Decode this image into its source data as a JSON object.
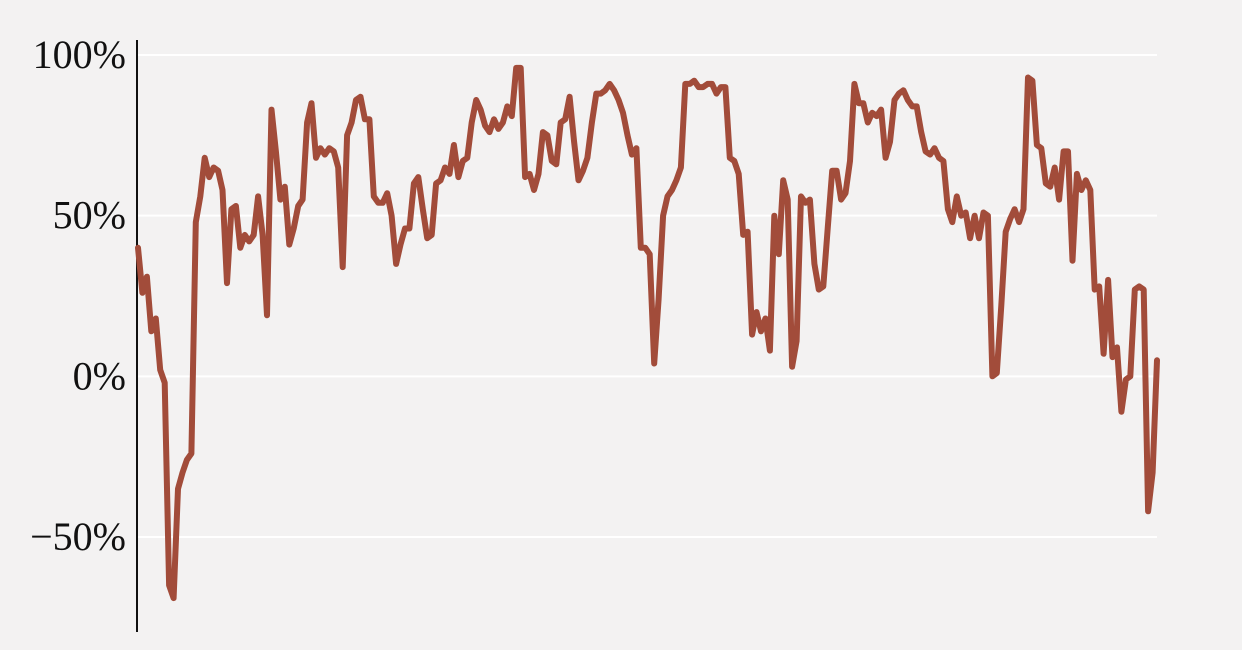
{
  "chart_data": {
    "type": "line",
    "title": "",
    "xlabel": "",
    "ylabel": "",
    "ylim": [
      -80,
      100
    ],
    "yticks": [
      {
        "value": 100,
        "label": "100%"
      },
      {
        "value": 50,
        "label": "50%"
      },
      {
        "value": 0,
        "label": "0%"
      },
      {
        "value": -50,
        "label": "−50%"
      }
    ],
    "grid": "horizontal",
    "series": [
      {
        "color": "#a24c3a",
        "values": [
          40,
          26,
          31,
          14,
          18,
          2,
          -2,
          -65,
          -69,
          -35,
          -30,
          -26,
          -24,
          48,
          56,
          68,
          62,
          65,
          64,
          58,
          29,
          52,
          53,
          40,
          44,
          42,
          44,
          56,
          44,
          19,
          83,
          70,
          55,
          59,
          41,
          46,
          53,
          55,
          79,
          85,
          68,
          71,
          69,
          71,
          70,
          65,
          34,
          75,
          79,
          86,
          87,
          80,
          80,
          56,
          54,
          54,
          57,
          50,
          35,
          41,
          46,
          46,
          60,
          62,
          52,
          43,
          44,
          60,
          61,
          65,
          63,
          72,
          62,
          67,
          68,
          79,
          86,
          83,
          78,
          76,
          80,
          77,
          79,
          84,
          81,
          96,
          96,
          62,
          63,
          58,
          63,
          76,
          75,
          67,
          66,
          79,
          80,
          87,
          73,
          61,
          64,
          68,
          79,
          88,
          88,
          89,
          91,
          89,
          86,
          82,
          75,
          69,
          71,
          40,
          40,
          38,
          4,
          24,
          50,
          56,
          58,
          61,
          65,
          91,
          91,
          92,
          90,
          90,
          91,
          91,
          88,
          90,
          90,
          68,
          67,
          63,
          44,
          45,
          13,
          20,
          14,
          18,
          8,
          50,
          38,
          61,
          55,
          3,
          11,
          56,
          54,
          55,
          35,
          27,
          28,
          46,
          64,
          64,
          55,
          57,
          67,
          91,
          85,
          85,
          79,
          82,
          81,
          83,
          68,
          73,
          86,
          88,
          89,
          86,
          84,
          84,
          76,
          70,
          69,
          71,
          68,
          67,
          52,
          48,
          56,
          50,
          51,
          43,
          50,
          43,
          51,
          50,
          0,
          1,
          22,
          45,
          49,
          52,
          48,
          52,
          93,
          92,
          72,
          71,
          60,
          59,
          65,
          55,
          70,
          70,
          36,
          63,
          58,
          61,
          58,
          27,
          28,
          7,
          30,
          6,
          9,
          -11,
          -1,
          0,
          27,
          28,
          27,
          -42,
          -30,
          5
        ]
      }
    ]
  }
}
